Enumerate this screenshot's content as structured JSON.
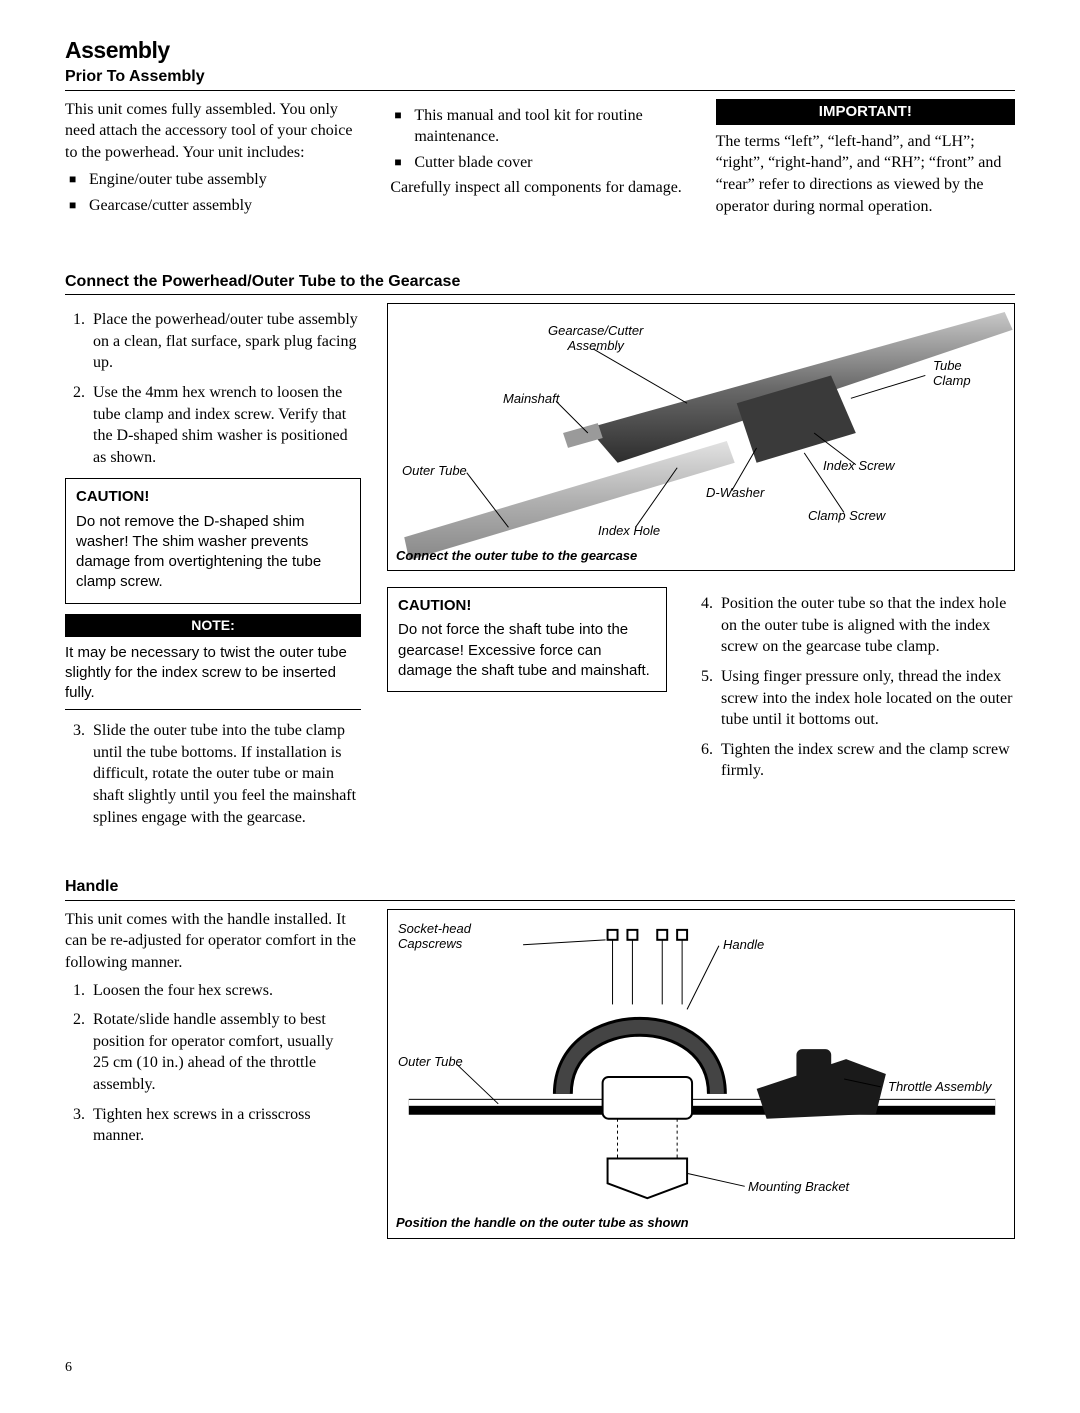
{
  "page": {
    "title": "Assembly",
    "number": "6"
  },
  "prior": {
    "heading": "Prior To Assembly",
    "intro": "This unit comes fully assembled. You only need attach the accessory tool of your choice to the powerhead.  Your unit includes:",
    "items_col1": [
      "Engine/outer tube assembly",
      "Gearcase/cutter assembly"
    ],
    "items_col2": [
      "This manual and tool kit for routine maintenance.",
      "Cutter blade cover"
    ],
    "inspect": "Carefully inspect all components for damage.",
    "important_label": "IMPORTANT!",
    "important_text": "The terms “left”, “left-hand”, and “LH”; “right”, “right-hand”, and “RH”; “front” and “rear” refer to directions as viewed by the operator during normal operation."
  },
  "connect": {
    "heading": "Connect the Powerhead/Outer Tube to the Gearcase",
    "steps_a": [
      "Place the powerhead/outer tube assembly on a clean, flat surface, spark plug facing up.",
      "Use the 4mm hex wrench to loosen the tube clamp and index screw. Verify that the D-shaped shim washer is positioned as shown."
    ],
    "caution1_title": "CAUTION!",
    "caution1_text": "Do not remove the D-shaped shim washer! The shim washer prevents damage from overtightening the tube clamp screw.",
    "note_label": "NOTE:",
    "note_text": "It may be necessary to twist the outer tube slightly for the index screw to be inserted fully.",
    "step3": "Slide the outer tube into the tube clamp until the tube bottoms. If installation is difficult, rotate the outer tube or main shaft slightly until you feel the mainshaft splines engage with the gearcase.",
    "caution2_title": "CAUTION!",
    "caution2_text": "Do not force the shaft tube into the gearcase! Excessive force can damage the shaft tube and mainshaft.",
    "steps_b": [
      "Position the outer tube so that the index hole on the outer tube is aligned with the index screw on the gearcase tube clamp.",
      "Using finger pressure only, thread the index screw into the index hole located on the outer tube until it bottoms out.",
      "Tighten the index screw and the clamp screw firmly."
    ],
    "fig1": {
      "caption": "Connect the  outer tube to the gearcase",
      "labels": {
        "gearcase": "Gearcase/Cutter\nAssembly",
        "mainshaft": "Mainshaft",
        "outer_tube": "Outer Tube",
        "index_hole": "Index Hole",
        "d_washer": "D-Washer",
        "tube_clamp": "Tube\nClamp",
        "index_screw": "Index Screw",
        "clamp_screw": "Clamp Screw"
      }
    }
  },
  "handle": {
    "heading": "Handle",
    "intro": "This unit comes with the handle installed. It can be re-adjusted for operator comfort in the following manner.",
    "steps": [
      "Loosen the four hex screws.",
      "Rotate/slide handle assembly to best position for operator comfort, usually 25 cm (10 in.) ahead of the throttle assembly.",
      "Tighten hex screws in a crisscross manner."
    ],
    "fig2": {
      "caption": "Position the handle on the outer tube as shown",
      "labels": {
        "capscrews": "Socket-head\nCapscrews",
        "handle": "Handle",
        "outer_tube": "Outer Tube",
        "throttle": "Throttle  Assembly",
        "bracket": "Mounting Bracket"
      }
    }
  }
}
